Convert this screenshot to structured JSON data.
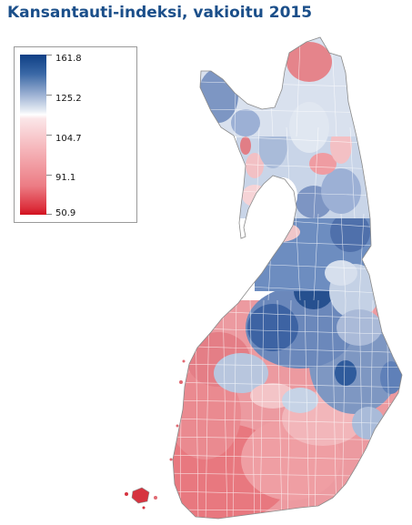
{
  "title": "Kansantauti-indeksi, vakioitu 2015",
  "legend": {
    "labels": [
      "161.8",
      "125.2",
      "104.7",
      "91.1",
      "50.9"
    ],
    "colors": {
      "high": "#0f3f85",
      "upper": "#9cb1d3",
      "mid": "#ffffff",
      "lower": "#f5b3b8",
      "low": "#d1121f"
    }
  },
  "map": {
    "region": "Finland",
    "unit": "municipalities",
    "pattern": "south and west lower (red), east and north-central higher (blue), highest in central-eastern areas"
  }
}
